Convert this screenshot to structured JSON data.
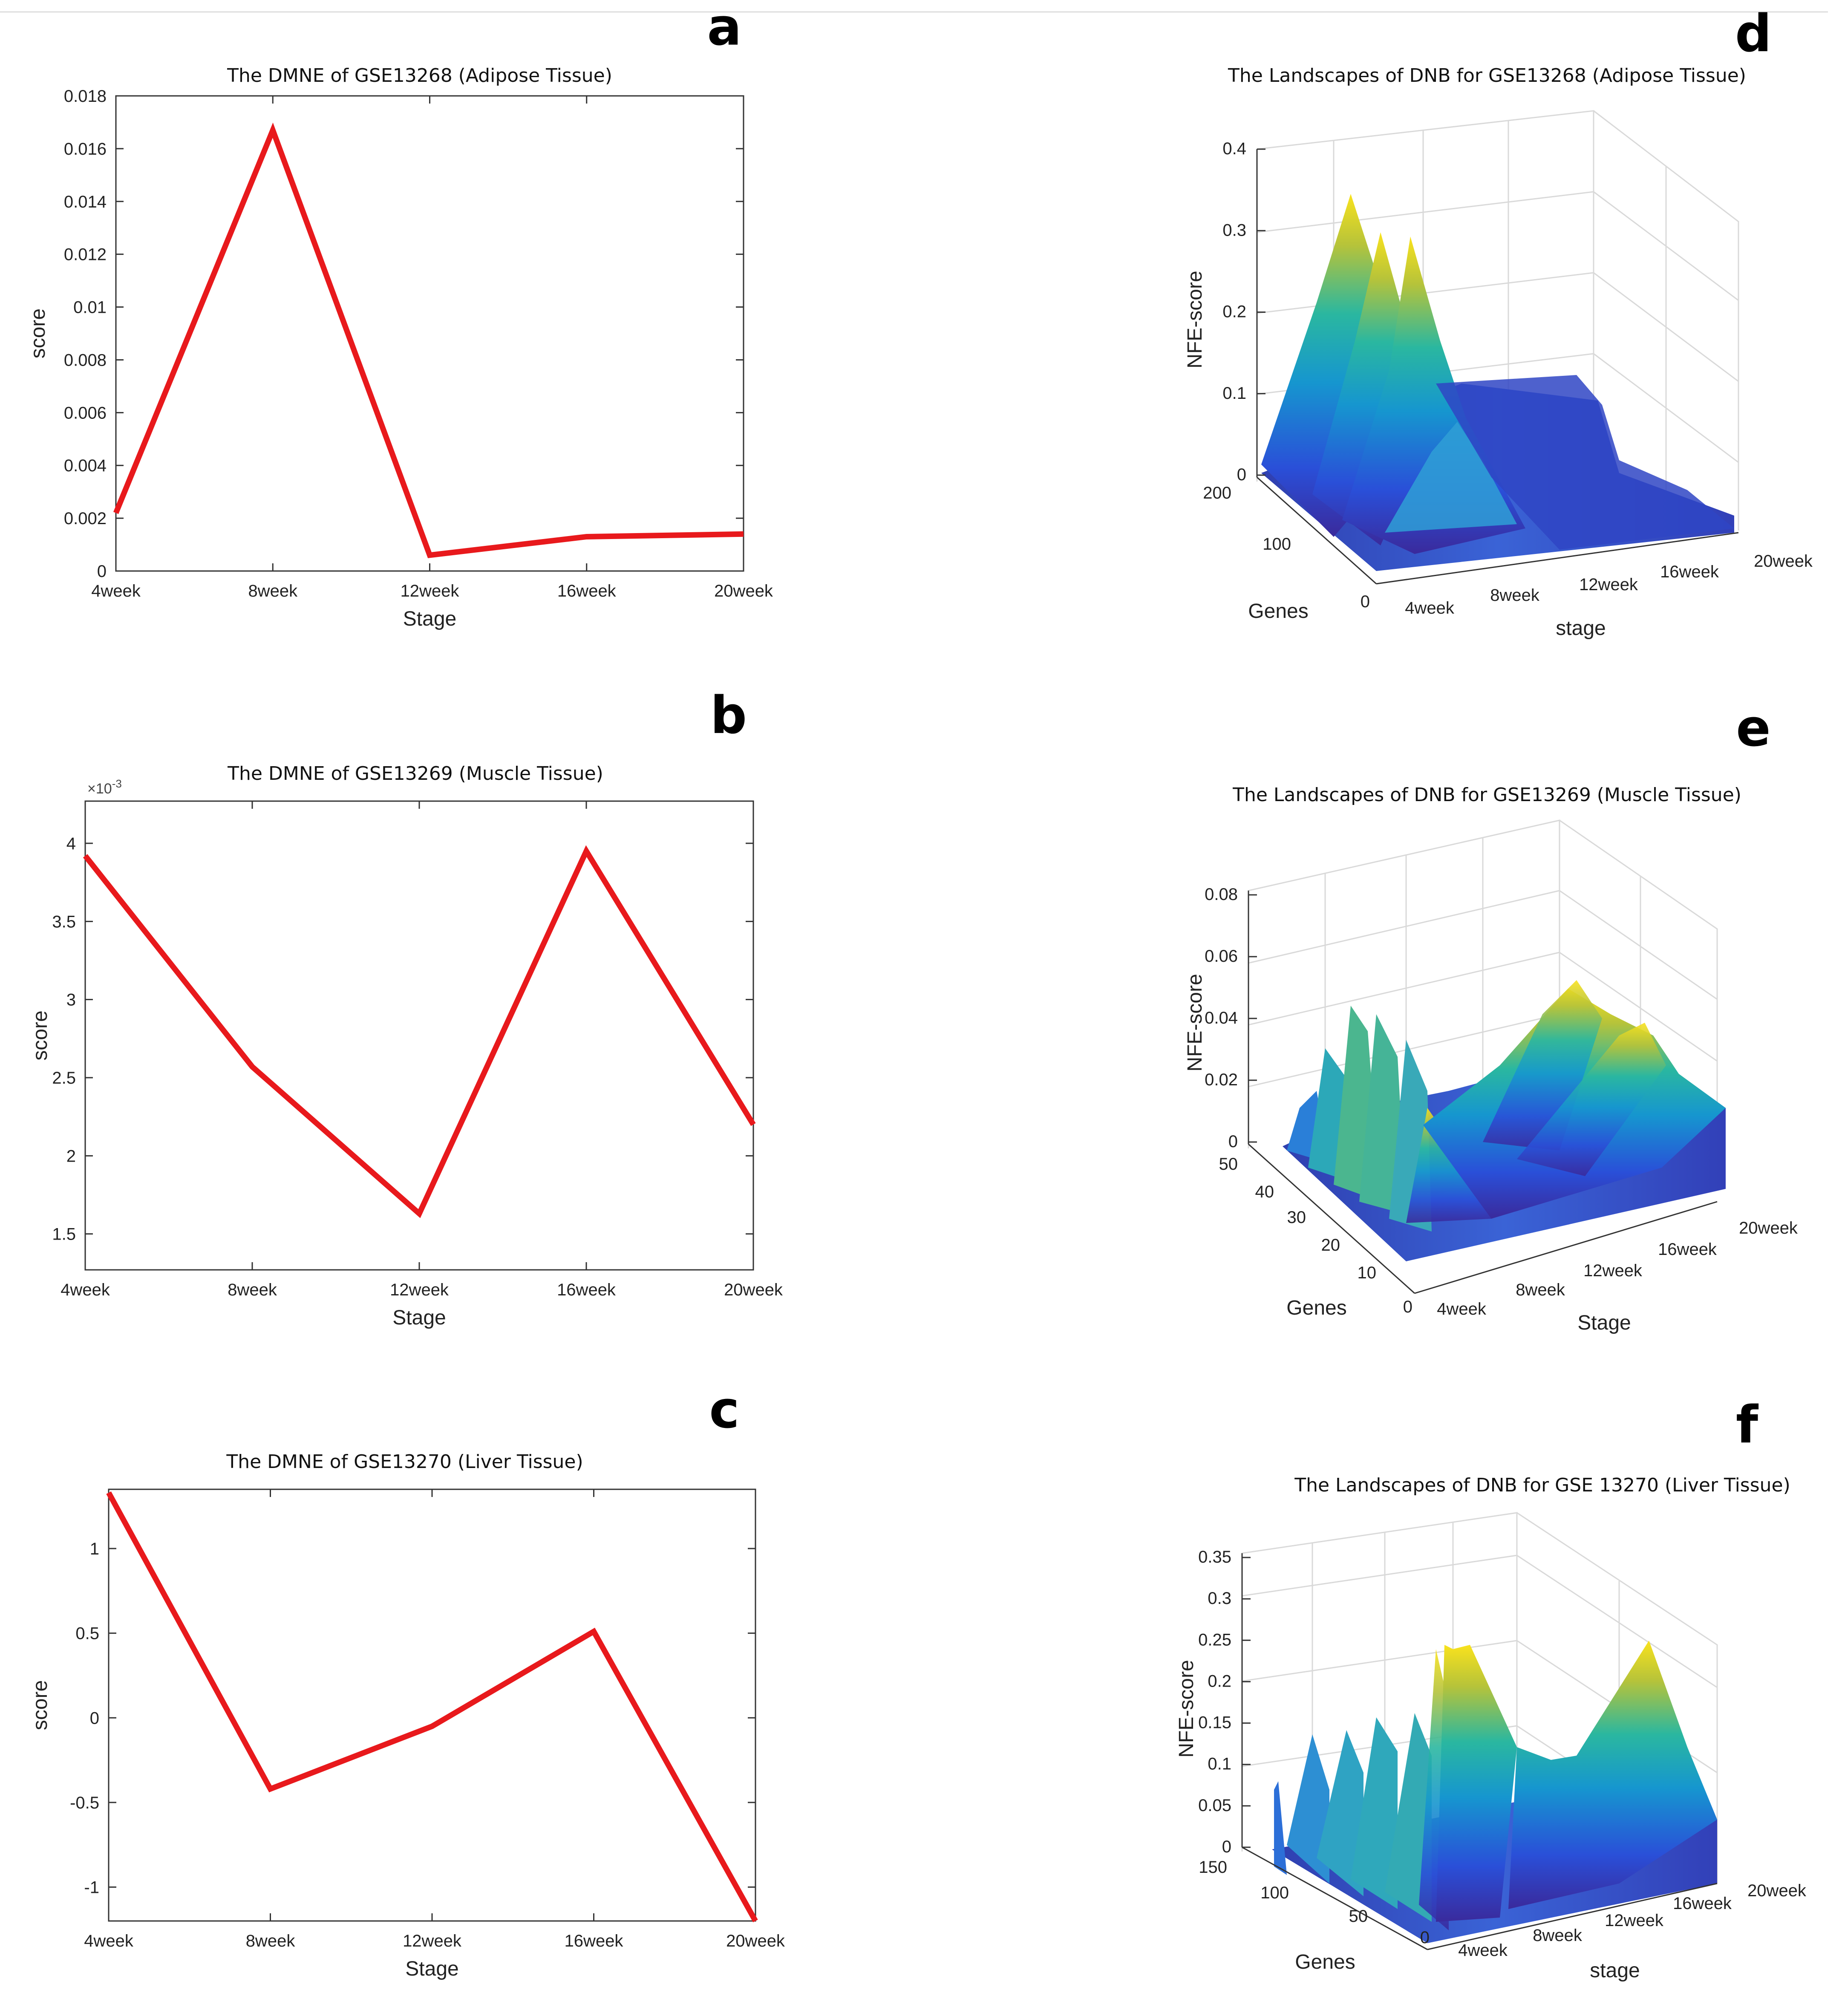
{
  "panels": [
    {
      "label": "a"
    },
    {
      "label": "b"
    },
    {
      "label": "c"
    },
    {
      "label": "d"
    },
    {
      "label": "e"
    },
    {
      "label": "f"
    }
  ],
  "chart_data": [
    {
      "id": "a",
      "type": "line",
      "title": "The DMNE of GSE13268 (Adipose Tissue)",
      "xlabel": "Stage",
      "ylabel": "score",
      "categories": [
        "4week",
        "8week",
        "12week",
        "16week",
        "20week"
      ],
      "values": [
        0.0022,
        0.0167,
        0.0006,
        0.0013,
        0.0014
      ],
      "ylim": [
        0,
        0.018
      ],
      "yticks": [
        0,
        0.002,
        0.004,
        0.006,
        0.008,
        0.01,
        0.012,
        0.014,
        0.016,
        0.018
      ],
      "ytick_labels": [
        "0",
        "0.002",
        "0.004",
        "0.006",
        "0.008",
        "0.01",
        "0.012",
        "0.014",
        "0.016",
        "0.018"
      ],
      "line_color": "#e8191c"
    },
    {
      "id": "b",
      "type": "line",
      "title": "The DMNE of GSE13269 (Muscle Tissue)",
      "xlabel": "Stage",
      "ylabel": "score",
      "multiplier": "×10",
      "multiplier_exp": "-3",
      "categories": [
        "4week",
        "8week",
        "12week",
        "16week",
        "20week"
      ],
      "values": [
        3.92,
        2.57,
        1.63,
        3.95,
        2.2
      ],
      "ylim": [
        1.27,
        4.27
      ],
      "yticks": [
        1.5,
        2,
        2.5,
        3,
        3.5,
        4
      ],
      "ytick_labels": [
        "1.5",
        "2",
        "2.5",
        "3",
        "3.5",
        "4"
      ],
      "line_color": "#e8191c"
    },
    {
      "id": "c",
      "type": "line",
      "title": "The DMNE of GSE13270 (Liver Tissue)",
      "xlabel": "Stage",
      "ylabel": "score",
      "categories": [
        "4week",
        "8week",
        "12week",
        "16week",
        "20week"
      ],
      "values": [
        1.33,
        -0.42,
        -0.05,
        0.51,
        -1.2
      ],
      "ylim": [
        -1.2,
        1.35
      ],
      "yticks": [
        -1,
        -0.5,
        0,
        0.5,
        1
      ],
      "ytick_labels": [
        "-1",
        "-0.5",
        "0",
        "0.5",
        "1"
      ],
      "line_color": "#e8191c"
    },
    {
      "id": "d",
      "type": "surface3d",
      "title": "The Landscapes of DNB for GSE13268 (Adipose Tissue)",
      "zlabel": "NFE-score",
      "ylabel": "Genes",
      "xlabel": "stage",
      "stages": [
        "4week",
        "8week",
        "12week",
        "16week",
        "20week"
      ],
      "zticks": [
        "0",
        "0.1",
        "0.2",
        "0.3",
        "0.4"
      ],
      "gene_ticks": [
        "0",
        "100",
        "200"
      ],
      "peaks": [
        0.35,
        0.33,
        0.32
      ],
      "peak_stage": "8week"
    },
    {
      "id": "e",
      "type": "surface3d",
      "title": "The Landscapes of DNB for GSE13269 (Muscle Tissue)",
      "zlabel": "NFE-score",
      "ylabel": "Genes",
      "xlabel": "Stage",
      "stages": [
        "4week",
        "8week",
        "12week",
        "16week",
        "20week"
      ],
      "zticks": [
        "0",
        "0.02",
        "0.04",
        "0.06",
        "0.08"
      ],
      "gene_ticks": [
        "0",
        "10",
        "20",
        "30",
        "40",
        "50"
      ],
      "peaks": [
        0.04,
        0.045,
        0.044,
        0.042
      ],
      "peak_stage": "16week"
    },
    {
      "id": "f",
      "type": "surface3d",
      "title": "The Landscapes of DNB for GSE 13270 (Liver Tissue)",
      "zlabel": "NFE-score",
      "ylabel": "Genes",
      "xlabel": "stage",
      "stages": [
        "4week",
        "8week",
        "12week",
        "16week",
        "20week"
      ],
      "zticks": [
        "0",
        "0.05",
        "0.1",
        "0.15",
        "0.2",
        "0.25",
        "0.3",
        "0.35"
      ],
      "gene_ticks": [
        "0",
        "50",
        "100",
        "150"
      ],
      "peaks": [
        0.24,
        0.23,
        0.25
      ],
      "peak_stage": "16week"
    }
  ]
}
